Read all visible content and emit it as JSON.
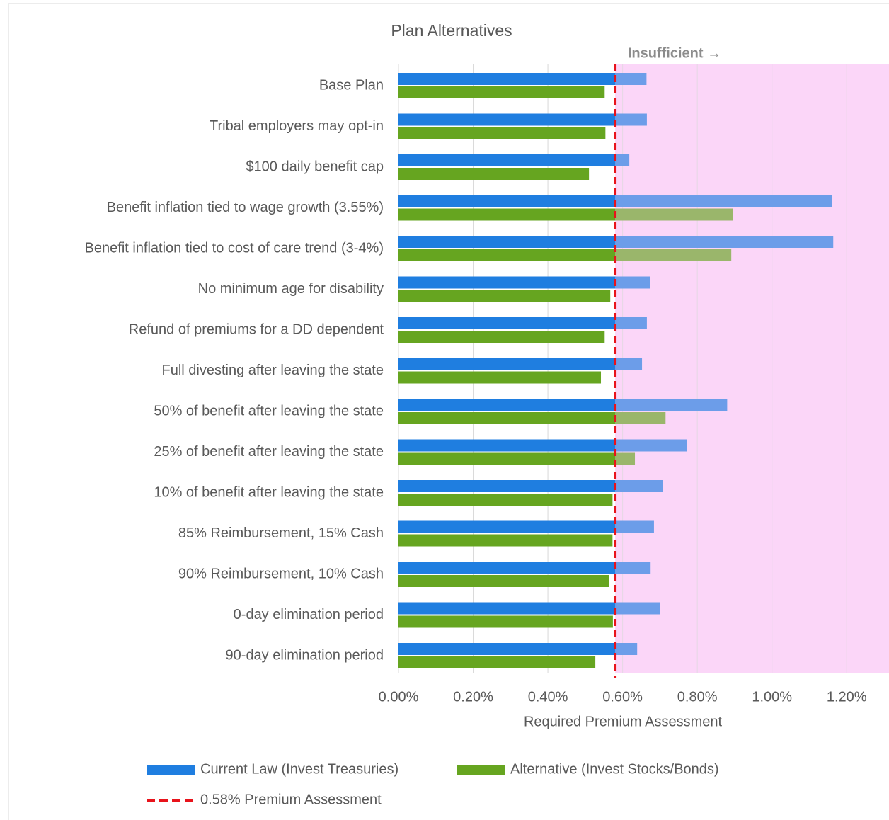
{
  "chart_data": {
    "type": "bar",
    "orientation": "horizontal",
    "title": "Plan Alternatives",
    "annotation": "Insufficient →",
    "x_label": "Required Premium Assessment",
    "categories": [
      "Base Plan",
      "Tribal employers may opt-in",
      "$100 daily benefit cap",
      "Benefit inflation tied to wage growth (3.55%)",
      "Benefit inflation tied to cost of care trend (3-4%)",
      "No minimum age for disability",
      "Refund of premiums for a DD dependent",
      "Full divesting after leaving the state",
      "50% of benefit after leaving the state",
      "25% of benefit after leaving the state",
      "10% of benefit after leaving the state",
      "85% Reimbursement, 15% Cash",
      "90% Reimbursement, 10% Cash",
      "0-day elimination period",
      "90-day elimination period"
    ],
    "series": [
      {
        "name": "Current Law (Invest Treasuries)",
        "color": "#1f7ee0",
        "values": [
          0.664,
          0.665,
          0.618,
          1.16,
          1.164,
          0.673,
          0.665,
          0.652,
          0.88,
          0.773,
          0.707,
          0.684,
          0.675,
          0.7,
          0.639
        ]
      },
      {
        "name": "Alternative (Invest Stocks/Bonds)",
        "color": "#66a520",
        "values": [
          0.552,
          0.554,
          0.51,
          0.895,
          0.891,
          0.567,
          0.552,
          0.542,
          0.715,
          0.633,
          0.573,
          0.573,
          0.563,
          0.574,
          0.527
        ]
      }
    ],
    "threshold": {
      "name": "0.58% Premium Assessment",
      "value": 0.58,
      "color": "#e8131b",
      "shade_color": "#fbd6f8"
    },
    "xlim": [
      0,
      1.3
    ],
    "xticks": [
      {
        "value": 0,
        "label": "0.00%"
      },
      {
        "value": 0.2,
        "label": "0.20%"
      },
      {
        "value": 0.4,
        "label": "0.40%"
      },
      {
        "value": 0.6,
        "label": "0.60%"
      },
      {
        "value": 0.8,
        "label": "0.80%"
      },
      {
        "value": 1.0,
        "label": "1.00%"
      },
      {
        "value": 1.2,
        "label": "1.20%"
      }
    ],
    "grid": true
  }
}
